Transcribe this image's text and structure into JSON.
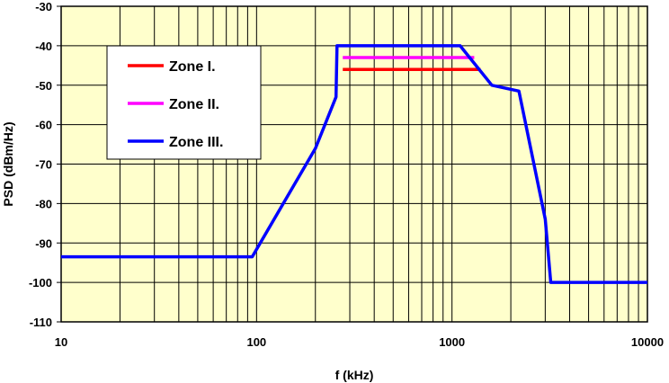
{
  "chart_data": {
    "type": "line",
    "xlabel": "f (kHz)",
    "ylabel": "PSD (dBm/Hz)",
    "x_scale": "log",
    "xlim": [
      10,
      10000
    ],
    "ylim": [
      -110,
      -30
    ],
    "x_ticks": [
      10,
      100,
      1000,
      10000
    ],
    "y_ticks": [
      -30,
      -40,
      -50,
      -60,
      -70,
      -80,
      -90,
      -100,
      -110
    ],
    "grid": true,
    "plot_background": "#ffffcc",
    "legend_position": "upper-left",
    "series": [
      {
        "name": "Zone I.",
        "color": "#ff0000",
        "x": [
          276,
          1400
        ],
        "y": [
          -46,
          -46
        ]
      },
      {
        "name": "Zone II.",
        "color": "#ff00ff",
        "x": [
          276,
          1300
        ],
        "y": [
          -43,
          -43
        ]
      },
      {
        "name": "Zone III.",
        "color": "#0000ff",
        "x": [
          10,
          95,
          200,
          255,
          258,
          1100,
          1600,
          2200,
          3000,
          3200,
          10000
        ],
        "y": [
          -93.5,
          -93.5,
          -66,
          -53,
          -40,
          -40,
          -50,
          -51.5,
          -84,
          -100,
          -100
        ]
      }
    ]
  }
}
